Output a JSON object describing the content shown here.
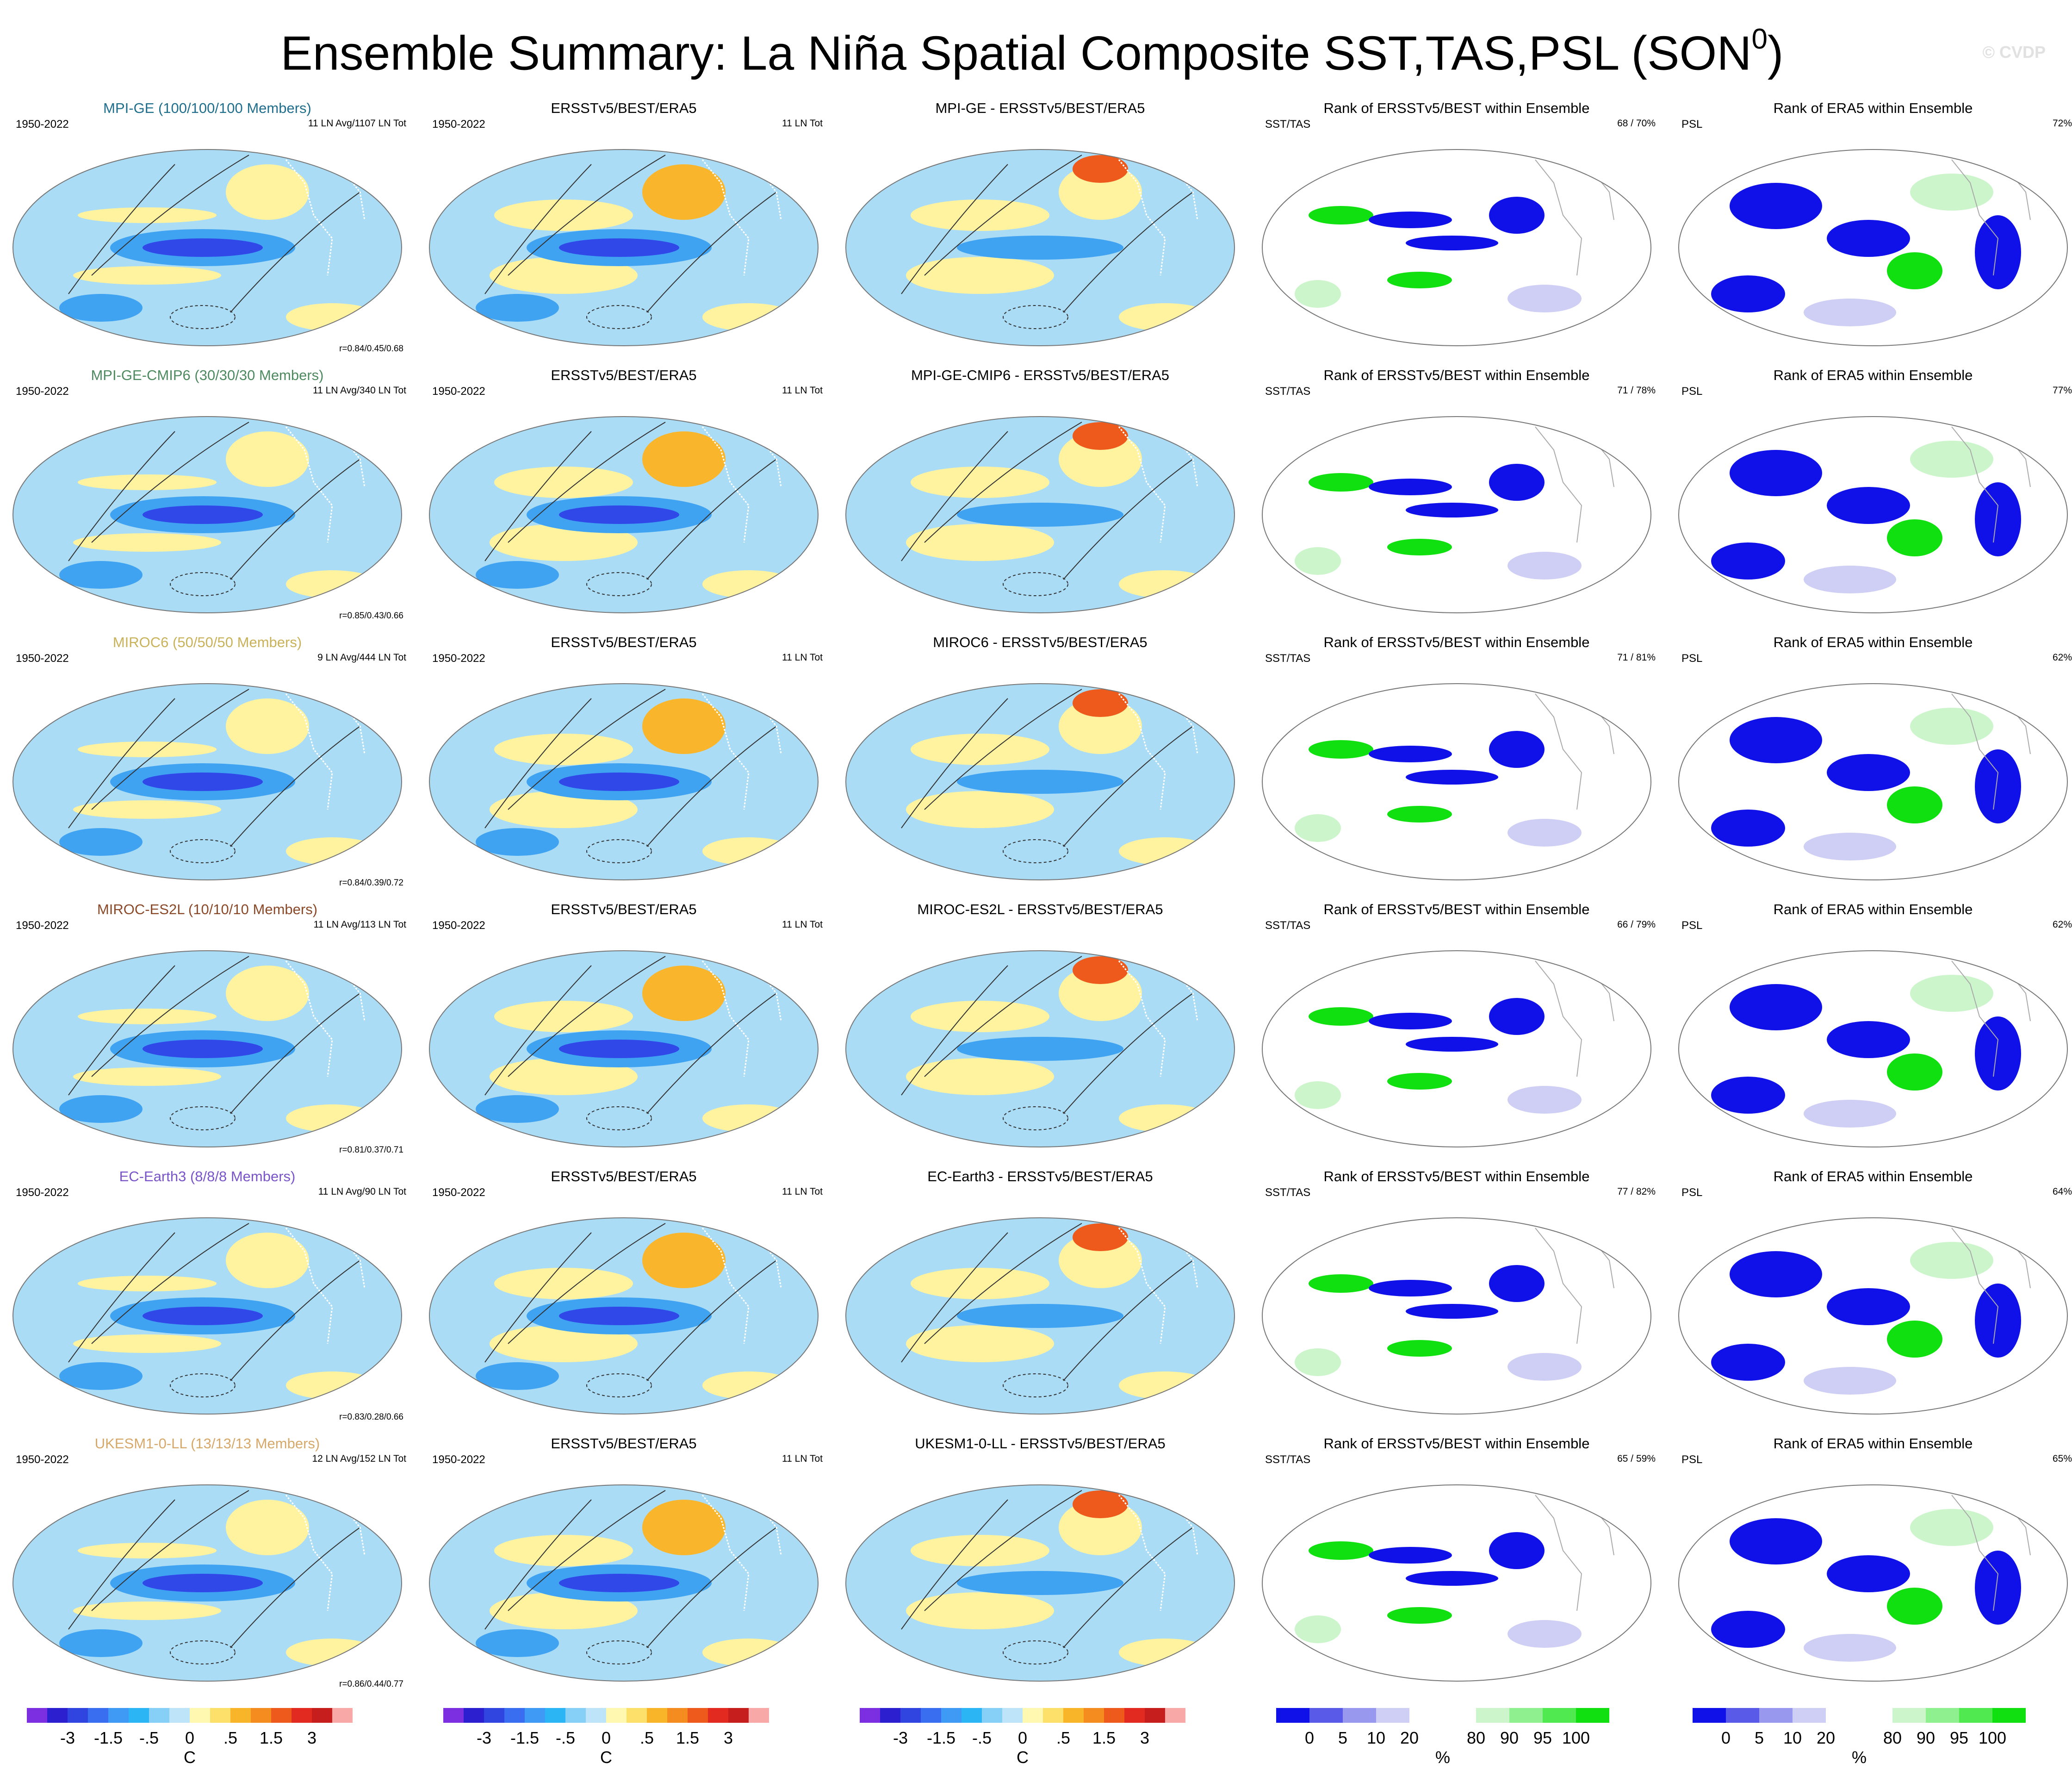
{
  "title": "Ensemble Summary: La Niña Spatial Composite SST,TAS,PSL (SON",
  "title_superscript": "0",
  "title_close": ")",
  "watermark": "© CVDP",
  "model_colors": {
    "MPI-GE": "#1f6e8c",
    "MPI-GE-CMIP6": "#4e8a60",
    "MIROC6": "#c9b25a",
    "MIROC-ES2L": "#8a4a2a",
    "EC-Earth3": "#7a55c8",
    "UKESM1-0-LL": "#d6a86a"
  },
  "rows": [
    {
      "model_title": "MPI-GE (100/100/100 Members)",
      "model_key": "MPI-GE",
      "years": "1950-2022",
      "ensemble_counts": "11 LN Avg/1107 LN Tot",
      "correlation": "r=0.84/0.45/0.68",
      "obs_title": "ERSSTv5/BEST/ERA5",
      "obs_years": "1950-2022",
      "obs_counts": "11 LN Tot",
      "diff_title": "MPI-GE - ERSSTv5/BEST/ERA5",
      "rank_sst_title": "Rank of ERSSTv5/BEST within Ensemble",
      "rank_sst_label": "SST/TAS",
      "rank_sst_pct": "68 /  70%",
      "rank_psl_title": "Rank of ERA5 within Ensemble",
      "rank_psl_label": "PSL",
      "rank_psl_pct": "72%"
    },
    {
      "model_title": "MPI-GE-CMIP6 (30/30/30 Members)",
      "model_key": "MPI-GE-CMIP6",
      "years": "1950-2022",
      "ensemble_counts": "11 LN Avg/340 LN Tot",
      "correlation": "r=0.85/0.43/0.66",
      "obs_title": "ERSSTv5/BEST/ERA5",
      "obs_years": "1950-2022",
      "obs_counts": "11 LN Tot",
      "diff_title": "MPI-GE-CMIP6 - ERSSTv5/BEST/ERA5",
      "rank_sst_title": "Rank of ERSSTv5/BEST within Ensemble",
      "rank_sst_label": "SST/TAS",
      "rank_sst_pct": "71 /  78%",
      "rank_psl_title": "Rank of ERA5 within Ensemble",
      "rank_psl_label": "PSL",
      "rank_psl_pct": "77%"
    },
    {
      "model_title": "MIROC6 (50/50/50 Members)",
      "model_key": "MIROC6",
      "years": "1950-2022",
      "ensemble_counts": "9 LN Avg/444 LN Tot",
      "correlation": "r=0.84/0.39/0.72",
      "obs_title": "ERSSTv5/BEST/ERA5",
      "obs_years": "1950-2022",
      "obs_counts": "11 LN Tot",
      "diff_title": "MIROC6 - ERSSTv5/BEST/ERA5",
      "rank_sst_title": "Rank of ERSSTv5/BEST within Ensemble",
      "rank_sst_label": "SST/TAS",
      "rank_sst_pct": "71 /  81%",
      "rank_psl_title": "Rank of ERA5 within Ensemble",
      "rank_psl_label": "PSL",
      "rank_psl_pct": "62%"
    },
    {
      "model_title": "MIROC-ES2L (10/10/10 Members)",
      "model_key": "MIROC-ES2L",
      "years": "1950-2022",
      "ensemble_counts": "11 LN Avg/113 LN Tot",
      "correlation": "r=0.81/0.37/0.71",
      "obs_title": "ERSSTv5/BEST/ERA5",
      "obs_years": "1950-2022",
      "obs_counts": "11 LN Tot",
      "diff_title": "MIROC-ES2L - ERSSTv5/BEST/ERA5",
      "rank_sst_title": "Rank of ERSSTv5/BEST within Ensemble",
      "rank_sst_label": "SST/TAS",
      "rank_sst_pct": "66 /  79%",
      "rank_psl_title": "Rank of ERA5 within Ensemble",
      "rank_psl_label": "PSL",
      "rank_psl_pct": "62%"
    },
    {
      "model_title": "EC-Earth3 (8/8/8 Members)",
      "model_key": "EC-Earth3",
      "years": "1950-2022",
      "ensemble_counts": "11 LN Avg/90 LN Tot",
      "correlation": "r=0.83/0.28/0.66",
      "obs_title": "ERSSTv5/BEST/ERA5",
      "obs_years": "1950-2022",
      "obs_counts": "11 LN Tot",
      "diff_title": "EC-Earth3 - ERSSTv5/BEST/ERA5",
      "rank_sst_title": "Rank of ERSSTv5/BEST within Ensemble",
      "rank_sst_label": "SST/TAS",
      "rank_sst_pct": "77 /  82%",
      "rank_psl_title": "Rank of ERA5 within Ensemble",
      "rank_psl_label": "PSL",
      "rank_psl_pct": "64%"
    },
    {
      "model_title": "UKESM1-0-LL (13/13/13 Members)",
      "model_key": "UKESM1-0-LL",
      "years": "1950-2022",
      "ensemble_counts": "12 LN Avg/152 LN Tot",
      "correlation": "r=0.86/0.44/0.77",
      "obs_title": "ERSSTv5/BEST/ERA5",
      "obs_years": "1950-2022",
      "obs_counts": "11 LN Tot",
      "diff_title": "UKESM1-0-LL - ERSSTv5/BEST/ERA5",
      "rank_sst_title": "Rank of ERSSTv5/BEST within Ensemble",
      "rank_sst_label": "SST/TAS",
      "rank_sst_pct": "65 /  59%",
      "rank_psl_title": "Rank of ERA5 within Ensemble",
      "rank_psl_label": "PSL",
      "rank_psl_pct": "65%"
    }
  ],
  "temp_colorbar": {
    "unit": "C",
    "tick_labels": [
      "-3",
      "-1.5",
      "-.5",
      "0",
      ".5",
      "1.5",
      "3"
    ],
    "tick_after_box": [
      2,
      4,
      6,
      8,
      10,
      12,
      14
    ],
    "colors": [
      "#7b2fe0",
      "#2b1fd0",
      "#3044e0",
      "#3a6ef0",
      "#3f9af5",
      "#2cb5f5",
      "#86d0f7",
      "#bde4f9",
      "#fff8b0",
      "#fde06a",
      "#f9b52a",
      "#f48c1f",
      "#ee5a1b",
      "#e22a20",
      "#c61d1d",
      "#f9a8a8"
    ]
  },
  "rank_colorbar": {
    "unit": "%",
    "tick_labels": [
      "0",
      "5",
      "10",
      "20",
      "80",
      "90",
      "95",
      "100"
    ],
    "tick_after_box": [
      1,
      2,
      3,
      4,
      6,
      7,
      8,
      9
    ],
    "colors": [
      "#1010e8",
      "#5a5ae8",
      "#9898ee",
      "#cfcff5",
      "#ffffff",
      "#ffffff",
      "#ccf5cc",
      "#8ef08e",
      "#50ea50",
      "#10e010"
    ]
  },
  "legend": {
    "colors": {
      "strong_cool": "#3048e8",
      "cool": "#3fa3f2",
      "weak_cool": "#aadcf5",
      "warm": "#fff3a0",
      "strong_warm": "#f9b62c",
      "hot": "#ee5a1b",
      "rank_low": "#1010e8",
      "rank_lowmid": "#cfcff5",
      "rank_high": "#10e010",
      "rank_highmid": "#ccf5cc"
    }
  }
}
